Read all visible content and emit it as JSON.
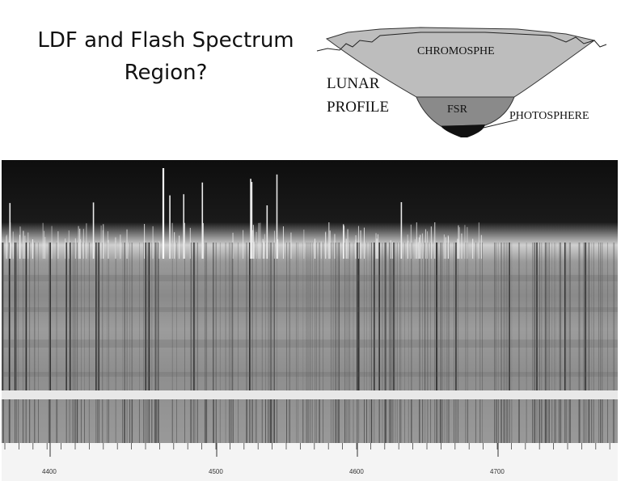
{
  "title": {
    "lines": [
      "LDF and Flash Spectrum",
      "Region?"
    ]
  },
  "diagram": {
    "chromosphere": "CHROMOSPHE",
    "lunar_profile": [
      "LUNAR",
      "PROFILE"
    ],
    "fsr": "FSR",
    "photosphere": "PHOTOSPHERE"
  },
  "spectrum": {
    "scale_labels": [
      "4400",
      "4500",
      "4600",
      "4700"
    ]
  }
}
